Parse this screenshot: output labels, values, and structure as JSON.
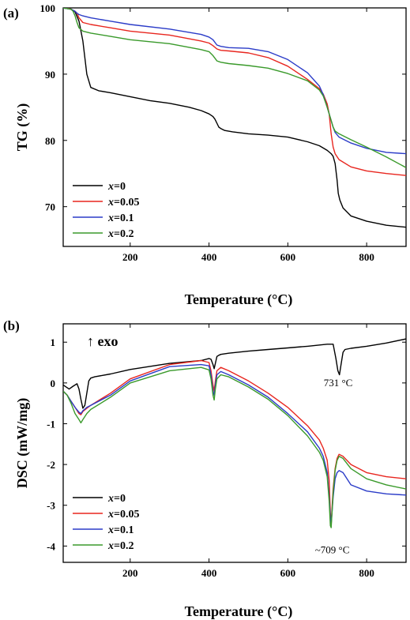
{
  "chart_data": [
    {
      "type": "line",
      "panel": "(a)",
      "xlabel": "Temperature (°C)",
      "ylabel": "TG (%)",
      "xlim": [
        30,
        900
      ],
      "ylim": [
        64,
        100
      ],
      "xticks": [
        200,
        400,
        600,
        800
      ],
      "yticks": [
        70,
        80,
        90,
        100
      ],
      "grid": false,
      "legend_position": "bottom-left",
      "series": [
        {
          "name": "x=0",
          "color": "#000000",
          "x": [
            30,
            50,
            60,
            70,
            80,
            90,
            100,
            120,
            150,
            200,
            250,
            300,
            350,
            380,
            400,
            410,
            415,
            420,
            425,
            430,
            440,
            460,
            500,
            550,
            600,
            650,
            680,
            700,
            710,
            715,
            720,
            725,
            728,
            732,
            740,
            760,
            800,
            850,
            900
          ],
          "y": [
            100,
            99.8,
            99.4,
            98,
            95,
            90,
            88,
            87.5,
            87.2,
            86.6,
            86,
            85.6,
            85,
            84.5,
            84,
            83.6,
            83.2,
            82.6,
            82,
            81.8,
            81.5,
            81.3,
            81,
            80.8,
            80.5,
            79.8,
            79.2,
            78.5,
            78,
            77.6,
            76.5,
            74,
            72,
            71,
            69.8,
            68.6,
            67.8,
            67.2,
            66.9
          ]
        },
        {
          "name": "x=0.05",
          "color": "#e8261f",
          "x": [
            30,
            40,
            50,
            60,
            65,
            70,
            80,
            100,
            150,
            200,
            300,
            380,
            400,
            410,
            420,
            430,
            450,
            500,
            550,
            600,
            650,
            680,
            690,
            700,
            705,
            710,
            715,
            720,
            730,
            760,
            800,
            850,
            900
          ],
          "y": [
            100,
            100,
            99.8,
            99.5,
            99.2,
            98.5,
            97.8,
            97.5,
            97,
            96.5,
            95.9,
            95,
            94.7,
            94.3,
            93.8,
            93.6,
            93.5,
            93.2,
            92.5,
            91.2,
            89.2,
            87.8,
            87,
            85.5,
            84,
            81,
            79,
            78,
            77.1,
            76,
            75.4,
            75,
            74.7
          ]
        },
        {
          "name": "x=0.1",
          "color": "#2b3cc8",
          "x": [
            30,
            50,
            60,
            65,
            70,
            80,
            100,
            150,
            200,
            300,
            380,
            400,
            410,
            420,
            430,
            450,
            500,
            550,
            600,
            650,
            680,
            690,
            700,
            705,
            710,
            715,
            720,
            730,
            760,
            800,
            850,
            900
          ],
          "y": [
            100,
            99.8,
            99.5,
            99.2,
            99,
            98.8,
            98.5,
            98,
            97.5,
            96.8,
            96,
            95.6,
            95.2,
            94.4,
            94.2,
            94,
            93.9,
            93.4,
            92.2,
            90.2,
            88.2,
            86.9,
            85,
            84,
            83,
            82,
            81.2,
            80.5,
            79.6,
            78.8,
            78.2,
            78
          ]
        },
        {
          "name": "x=0.2",
          "color": "#3a9a2b",
          "x": [
            30,
            50,
            55,
            60,
            65,
            70,
            80,
            100,
            150,
            200,
            300,
            380,
            400,
            410,
            420,
            430,
            450,
            500,
            550,
            600,
            650,
            680,
            690,
            700,
            705,
            710,
            715,
            720,
            730,
            760,
            800,
            850,
            900
          ],
          "y": [
            100,
            99.8,
            99.5,
            98.8,
            97.8,
            97,
            96.5,
            96.2,
            95.7,
            95.2,
            94.6,
            93.7,
            93.4,
            92.8,
            92,
            91.8,
            91.6,
            91.3,
            90.9,
            90.1,
            89,
            87.6,
            86.7,
            85,
            84,
            83,
            82,
            81.4,
            81,
            80.1,
            79,
            77.5,
            75.9
          ]
        }
      ]
    },
    {
      "type": "line",
      "panel": "(b)",
      "xlabel": "Temperature (°C)",
      "ylabel": "DSC (mW/mg)",
      "xlim": [
        30,
        900
      ],
      "ylim": [
        -4.4,
        1.45
      ],
      "xticks": [
        200,
        400,
        600,
        800
      ],
      "yticks": [
        -4,
        -3,
        -2,
        -1,
        0,
        1
      ],
      "grid": false,
      "legend_position": "bottom-left",
      "annotations": [
        {
          "text": "731 °C",
          "x": 731,
          "y": 0.0
        },
        {
          "text": "~709 °C",
          "x": 709,
          "y": -4.1
        },
        {
          "text": "↑ exo"
        }
      ],
      "series": [
        {
          "name": "x=0",
          "color": "#000000",
          "x": [
            30,
            45,
            55,
            65,
            70,
            75,
            80,
            85,
            90,
            95,
            100,
            110,
            150,
            200,
            300,
            380,
            400,
            405,
            410,
            413,
            416,
            420,
            425,
            430,
            450,
            500,
            550,
            600,
            650,
            700,
            715,
            722,
            727,
            731,
            735,
            740,
            745,
            760,
            800,
            850,
            900
          ],
          "y": [
            -0.05,
            -0.15,
            -0.08,
            -0.02,
            -0.15,
            -0.4,
            -0.62,
            -0.55,
            -0.25,
            0.05,
            0.12,
            0.15,
            0.22,
            0.33,
            0.48,
            0.55,
            0.6,
            0.58,
            0.45,
            0.35,
            0.48,
            0.65,
            0.68,
            0.7,
            0.73,
            0.78,
            0.82,
            0.86,
            0.9,
            0.95,
            0.95,
            0.6,
            0.3,
            0.2,
            0.45,
            0.75,
            0.82,
            0.85,
            0.9,
            0.98,
            1.08
          ]
        },
        {
          "name": "x=0.05",
          "color": "#e8261f",
          "x": [
            30,
            40,
            50,
            60,
            70,
            75,
            80,
            90,
            100,
            150,
            200,
            300,
            380,
            400,
            405,
            410,
            413,
            416,
            420,
            430,
            450,
            500,
            550,
            600,
            650,
            680,
            690,
            700,
            705,
            708,
            710,
            712,
            715,
            720,
            725,
            730,
            740,
            760,
            800,
            850,
            900
          ],
          "y": [
            -0.2,
            -0.3,
            -0.45,
            -0.6,
            -0.75,
            -0.78,
            -0.7,
            -0.62,
            -0.55,
            -0.25,
            0.1,
            0.45,
            0.55,
            0.5,
            0.3,
            -0.05,
            -0.2,
            0.05,
            0.3,
            0.38,
            0.3,
            0.05,
            -0.25,
            -0.6,
            -1.05,
            -1.4,
            -1.6,
            -1.9,
            -2.4,
            -3.2,
            -3.5,
            -3.1,
            -2.6,
            -2.1,
            -1.85,
            -1.75,
            -1.8,
            -2.0,
            -2.2,
            -2.3,
            -2.35
          ]
        },
        {
          "name": "x=0.1",
          "color": "#2b3cc8",
          "x": [
            30,
            40,
            50,
            60,
            70,
            75,
            80,
            90,
            100,
            150,
            200,
            300,
            380,
            400,
            405,
            410,
            413,
            416,
            420,
            430,
            450,
            500,
            550,
            600,
            650,
            680,
            690,
            700,
            705,
            708,
            710,
            712,
            715,
            720,
            725,
            730,
            740,
            760,
            800,
            850,
            900
          ],
          "y": [
            -0.2,
            -0.3,
            -0.45,
            -0.6,
            -0.72,
            -0.75,
            -0.68,
            -0.6,
            -0.55,
            -0.3,
            0.05,
            0.4,
            0.45,
            0.42,
            0.2,
            -0.2,
            -0.3,
            -0.05,
            0.2,
            0.28,
            0.2,
            -0.05,
            -0.35,
            -0.75,
            -1.2,
            -1.6,
            -1.8,
            -2.2,
            -2.8,
            -3.3,
            -3.45,
            -3.2,
            -2.8,
            -2.35,
            -2.2,
            -2.15,
            -2.2,
            -2.5,
            -2.65,
            -2.72,
            -2.75
          ]
        },
        {
          "name": "x=0.2",
          "color": "#3a9a2b",
          "x": [
            30,
            40,
            50,
            60,
            70,
            75,
            80,
            90,
            100,
            150,
            200,
            300,
            380,
            400,
            405,
            410,
            413,
            416,
            420,
            430,
            450,
            500,
            550,
            600,
            650,
            680,
            690,
            700,
            705,
            708,
            710,
            712,
            715,
            720,
            725,
            730,
            740,
            760,
            800,
            850,
            900
          ],
          "y": [
            -0.2,
            -0.3,
            -0.5,
            -0.75,
            -0.9,
            -0.98,
            -0.9,
            -0.75,
            -0.65,
            -0.35,
            0.0,
            0.3,
            0.38,
            0.32,
            0.1,
            -0.3,
            -0.42,
            -0.15,
            0.1,
            0.2,
            0.15,
            -0.1,
            -0.4,
            -0.8,
            -1.3,
            -1.7,
            -1.9,
            -2.3,
            -2.9,
            -3.5,
            -3.55,
            -3.2,
            -2.7,
            -2.15,
            -1.9,
            -1.8,
            -1.85,
            -2.1,
            -2.35,
            -2.5,
            -2.6
          ]
        }
      ]
    }
  ]
}
